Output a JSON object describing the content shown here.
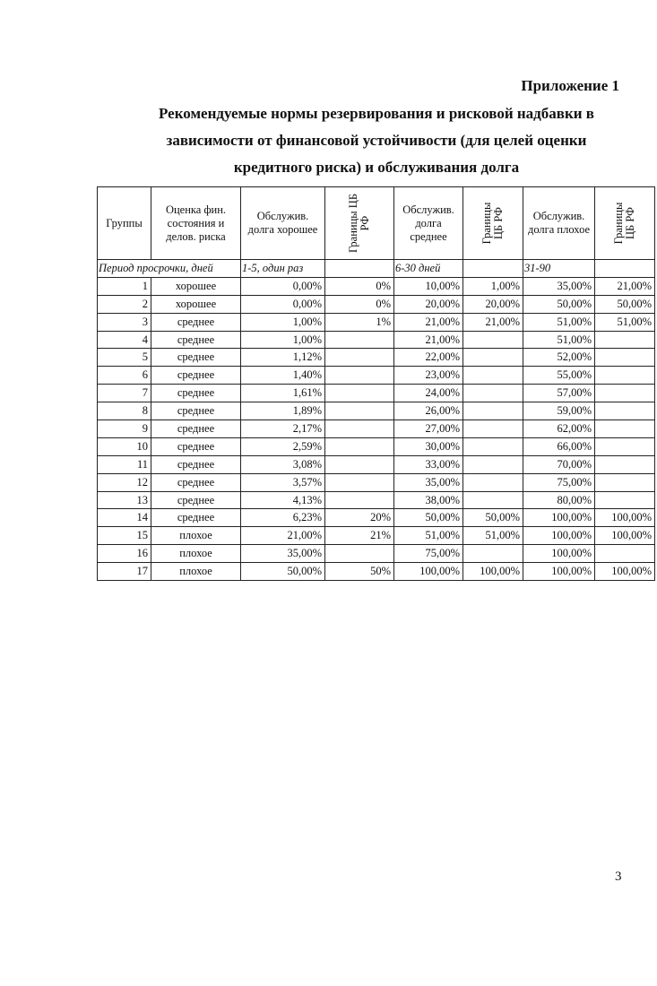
{
  "appendix_label": "Приложение 1",
  "title_lines": [
    "Рекомендуемые нормы резервирования и рисковой надбавки в",
    "зависимости от финансовой устойчивости (для целей оценки",
    "кредитного риска) и обслуживания долга"
  ],
  "table": {
    "headers": [
      "Группы",
      "Оценка фин. состояния и делов. риска",
      "Обслужив. долга хорошее",
      "Границы ЦБ РФ",
      "Обслужив. долга среднее",
      "Границы ЦБ РФ",
      "Обслужив. долга плохое",
      "Границы ЦБ РФ"
    ],
    "period": {
      "label": "Период просрочки, дней",
      "good": "1-5, один раз",
      "medium": "6-30 дней",
      "bad": "31-90"
    },
    "rows": [
      [
        "1",
        "хорошее",
        "0,00%",
        "0%",
        "10,00%",
        "1,00%",
        "35,00%",
        "21,00%"
      ],
      [
        "2",
        "хорошее",
        "0,00%",
        "0%",
        "20,00%",
        "20,00%",
        "50,00%",
        "50,00%"
      ],
      [
        "3",
        "среднее",
        "1,00%",
        "1%",
        "21,00%",
        "21,00%",
        "51,00%",
        "51,00%"
      ],
      [
        "4",
        "среднее",
        "1,00%",
        "",
        "21,00%",
        "",
        "51,00%",
        ""
      ],
      [
        "5",
        "среднее",
        "1,12%",
        "",
        "22,00%",
        "",
        "52,00%",
        ""
      ],
      [
        "6",
        "среднее",
        "1,40%",
        "",
        "23,00%",
        "",
        "55,00%",
        ""
      ],
      [
        "7",
        "среднее",
        "1,61%",
        "",
        "24,00%",
        "",
        "57,00%",
        ""
      ],
      [
        "8",
        "среднее",
        "1,89%",
        "",
        "26,00%",
        "",
        "59,00%",
        ""
      ],
      [
        "9",
        "среднее",
        "2,17%",
        "",
        "27,00%",
        "",
        "62,00%",
        ""
      ],
      [
        "10",
        "среднее",
        "2,59%",
        "",
        "30,00%",
        "",
        "66,00%",
        ""
      ],
      [
        "11",
        "среднее",
        "3,08%",
        "",
        "33,00%",
        "",
        "70,00%",
        ""
      ],
      [
        "12",
        "среднее",
        "3,57%",
        "",
        "35,00%",
        "",
        "75,00%",
        ""
      ],
      [
        "13",
        "среднее",
        "4,13%",
        "",
        "38,00%",
        "",
        "80,00%",
        ""
      ],
      [
        "14",
        "среднее",
        "6,23%",
        "20%",
        "50,00%",
        "50,00%",
        "100,00%",
        "100,00%"
      ],
      [
        "15",
        "плохое",
        "21,00%",
        "21%",
        "51,00%",
        "51,00%",
        "100,00%",
        "100,00%"
      ],
      [
        "16",
        "плохое",
        "35,00%",
        "",
        "75,00%",
        "",
        "100,00%",
        ""
      ],
      [
        "17",
        "плохое",
        "50,00%",
        "50%",
        "100,00%",
        "100,00%",
        "100,00%",
        "100,00%"
      ]
    ]
  },
  "page_number": "3"
}
